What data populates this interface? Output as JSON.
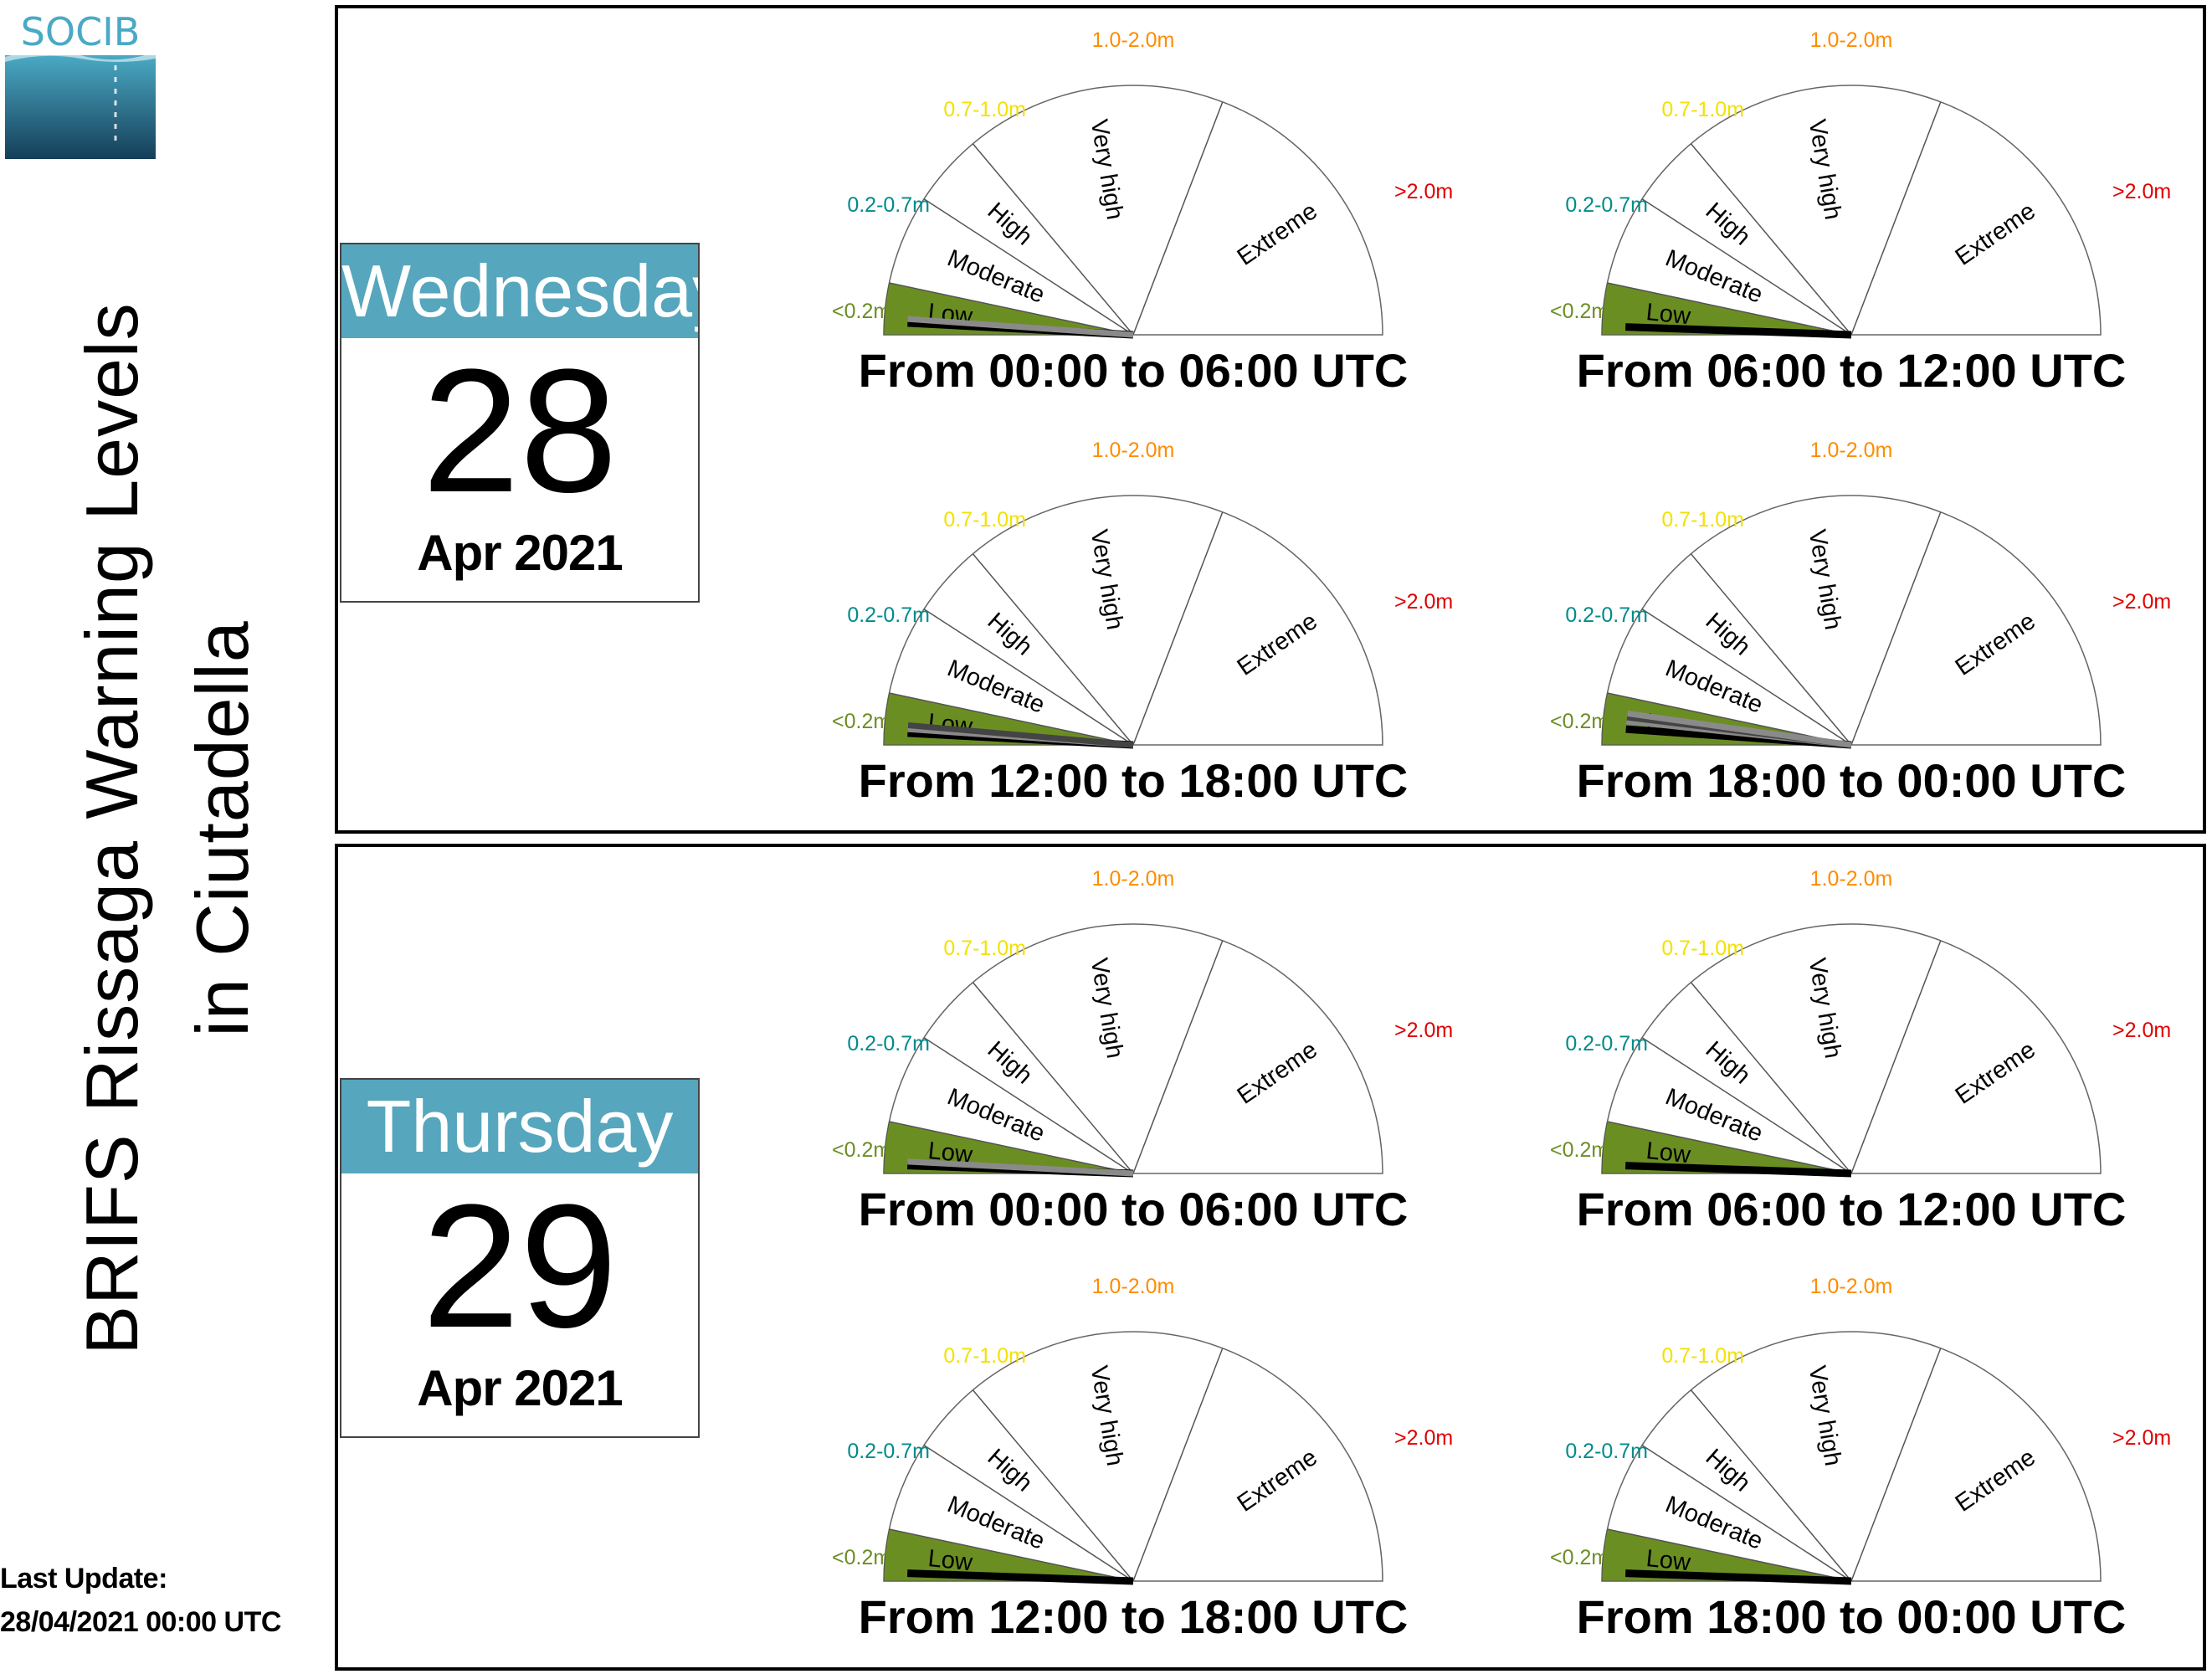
{
  "logo": {
    "text": "SOCIB"
  },
  "title": {
    "line1": "BRIFS Rissaga Warning Levels",
    "line2": "in Ciutadella"
  },
  "last_update": {
    "label": "Last Update:",
    "value": "28/04/2021 00:00 UTC"
  },
  "days": [
    {
      "weekday": "Wednesday",
      "day": "28",
      "month_year": "Apr 2021"
    },
    {
      "weekday": "Thursday",
      "day": "29",
      "month_year": "Apr 2021"
    }
  ],
  "gauge_legend": {
    "levels": [
      "Low",
      "Moderate",
      "High",
      "Very high",
      "Extreme"
    ],
    "ranges": [
      "<0.2m",
      "0.2-0.7m",
      "0.7-1.0m",
      "1.0-2.0m",
      ">2.0m"
    ],
    "range_colors": [
      "#6b8e23",
      "#008b8b",
      "#f2e200",
      "#ff8c00",
      "#e00000"
    ],
    "active_fill": "#6b8e23"
  },
  "chart_data": {
    "type": "gauge",
    "scale_levels": [
      "Low",
      "Moderate",
      "High",
      "Very high",
      "Extreme"
    ],
    "panels": [
      {
        "day": "Wednesday 28 Apr 2021",
        "period": "From 00:00 to 06:00 UTC",
        "level": "Low",
        "needles_deg": [
          3,
          4
        ]
      },
      {
        "day": "Wednesday 28 Apr 2021",
        "period": "From 06:00 to 12:00 UTC",
        "level": "Low",
        "needles_deg": [
          2
        ]
      },
      {
        "day": "Wednesday 28 Apr 2021",
        "period": "From 12:00 to 18:00 UTC",
        "level": "Low",
        "needles_deg": [
          3,
          4,
          5
        ]
      },
      {
        "day": "Wednesday 28 Apr 2021",
        "period": "From 18:00 to 00:00 UTC",
        "level": "Low",
        "needles_deg": [
          4,
          6,
          7,
          8
        ]
      },
      {
        "day": "Thursday 29 Apr 2021",
        "period": "From 00:00 to 06:00 UTC",
        "level": "Low",
        "needles_deg": [
          2,
          3
        ]
      },
      {
        "day": "Thursday 29 Apr 2021",
        "period": "From 06:00 to 12:00 UTC",
        "level": "Low",
        "needles_deg": [
          2
        ]
      },
      {
        "day": "Thursday 29 Apr 2021",
        "period": "From 12:00 to 18:00 UTC",
        "level": "Low",
        "needles_deg": [
          2
        ]
      },
      {
        "day": "Thursday 29 Apr 2021",
        "period": "From 18:00 to 00:00 UTC",
        "level": "Low",
        "needles_deg": [
          2
        ]
      }
    ]
  }
}
